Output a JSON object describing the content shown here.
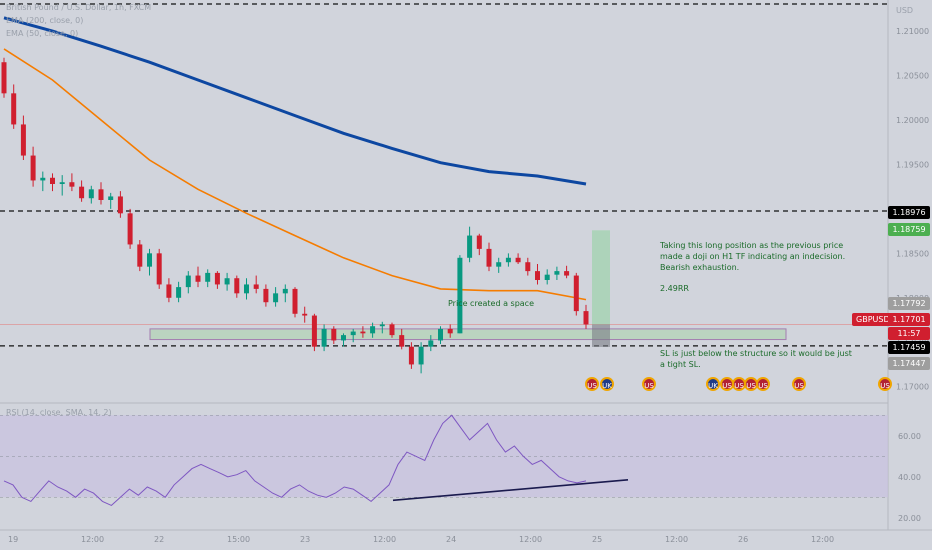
{
  "header": {
    "symbol_line": "British Pound / U.S. Dollar, 1h, FXCM",
    "ema200_line": "EMA (200, close, 0)",
    "ema50_line": "EMA (50, close, 0)",
    "currency": "USD"
  },
  "rsi_legend": "RSI (14, close, SMA, 14, 2)",
  "annotations": {
    "trade_note": "Taking this long position as the previous price\nmade a doji on H1 TF indicating an indecision.\nBearish exhaustion.",
    "rr": "2.49RR",
    "space": "Price created a space",
    "sl_note": "SL is just below the structure so it would be just\na tight SL."
  },
  "price_tags": [
    {
      "label": "1.18976",
      "bg": "#000000",
      "fg": "#ffffff"
    },
    {
      "label": "1.18759",
      "bg": "#4caf50",
      "fg": "#ffffff"
    },
    {
      "label": "1.17792",
      "bg": "#9e9e9e",
      "fg": "#ffffff"
    },
    {
      "label": "1.17701",
      "bg": "#d01f2f",
      "fg": "#ffffff"
    },
    {
      "label": "11:57",
      "bg": "#d01f2f",
      "fg": "#ffffff"
    },
    {
      "label": "1.17459",
      "bg": "#000000",
      "fg": "#ffffff"
    },
    {
      "label": "1.17447",
      "bg": "#9e9e9e",
      "fg": "#ffffff"
    }
  ],
  "symbol_tag": "GBPUSD",
  "colors": {
    "up": "#089981",
    "down": "#d01f2f",
    "ema200": "#0d47a1",
    "ema50": "#f57c00",
    "rsi_line": "#7e57c2",
    "rsi_band": "#c9c2e0",
    "support_zone": "#b8d4bc",
    "trendline": "#1a1a4e"
  },
  "events": [
    {
      "flag": "US",
      "type": "us"
    },
    {
      "flag": "UK",
      "type": "uk"
    },
    {
      "flag": "US",
      "type": "us"
    },
    {
      "flag": "UK",
      "type": "uk"
    },
    {
      "flag": "US",
      "type": "us"
    },
    {
      "flag": "US",
      "type": "us"
    },
    {
      "flag": "US",
      "type": "us"
    },
    {
      "flag": "US",
      "type": "us"
    },
    {
      "flag": "US",
      "type": "us"
    },
    {
      "flag": "US",
      "type": "us"
    }
  ],
  "chart_data": [
    {
      "type": "candlestick",
      "title": "British Pound / U.S. Dollar, 1h, FXCM",
      "ylabel": "USD",
      "ylim": [
        1.1685,
        1.2135
      ],
      "y_ticks": [
        "1.21000",
        "1.20500",
        "1.20000",
        "1.19500",
        "1.19000",
        "1.18500",
        "1.18000",
        "1.17500",
        "1.17000"
      ],
      "x_ticks": [
        "19",
        "12:00",
        "22",
        "15:00",
        "23",
        "12:00",
        "24",
        "12:00",
        "25",
        "12:00",
        "26",
        "12:00"
      ],
      "horizontal_levels": [
        1.18976,
        1.17459
      ],
      "support_zone": [
        1.1753,
        1.1765
      ],
      "long_position": {
        "entry": 1.177,
        "target": 1.18759,
        "stop": 1.17447,
        "label": "2.49RR"
      },
      "ema200": [
        1.2115,
        1.21,
        1.2083,
        1.2065,
        1.2045,
        1.2025,
        1.2005,
        1.1985,
        1.1968,
        1.1952,
        1.1942,
        1.1937,
        1.1928
      ],
      "ema50": [
        1.208,
        1.2045,
        1.2,
        1.1955,
        1.1922,
        1.1895,
        1.187,
        1.1845,
        1.1825,
        1.181,
        1.1808,
        1.1808,
        1.1798
      ],
      "candles": [
        [
          1.2065,
          1.207,
          1.2025,
          1.203
        ],
        [
          1.203,
          1.204,
          1.199,
          1.1995
        ],
        [
          1.1995,
          1.2005,
          1.1955,
          1.196
        ],
        [
          1.196,
          1.197,
          1.1925,
          1.1932
        ],
        [
          1.1932,
          1.1942,
          1.192,
          1.1935
        ],
        [
          1.1935,
          1.194,
          1.192,
          1.1928
        ],
        [
          1.1928,
          1.1938,
          1.1915,
          1.193
        ],
        [
          1.193,
          1.194,
          1.192,
          1.1925
        ],
        [
          1.1925,
          1.1932,
          1.1908,
          1.1912
        ],
        [
          1.1912,
          1.1926,
          1.1906,
          1.1922
        ],
        [
          1.1922,
          1.193,
          1.1905,
          1.191
        ],
        [
          1.191,
          1.1918,
          1.19,
          1.1914
        ],
        [
          1.1914,
          1.192,
          1.189,
          1.1895
        ],
        [
          1.1895,
          1.19,
          1.1855,
          1.186
        ],
        [
          1.186,
          1.1865,
          1.183,
          1.1835
        ],
        [
          1.1835,
          1.1855,
          1.1825,
          1.185
        ],
        [
          1.185,
          1.1855,
          1.181,
          1.1815
        ],
        [
          1.1815,
          1.1822,
          1.1795,
          1.18
        ],
        [
          1.18,
          1.1818,
          1.1795,
          1.1812
        ],
        [
          1.1812,
          1.183,
          1.1805,
          1.1825
        ],
        [
          1.1825,
          1.1835,
          1.1812,
          1.1818
        ],
        [
          1.1818,
          1.1832,
          1.1812,
          1.1828
        ],
        [
          1.1828,
          1.183,
          1.181,
          1.1815
        ],
        [
          1.1815,
          1.1828,
          1.1808,
          1.1822
        ],
        [
          1.1822,
          1.1825,
          1.18,
          1.1805
        ],
        [
          1.1805,
          1.1822,
          1.1798,
          1.1815
        ],
        [
          1.1815,
          1.1825,
          1.1805,
          1.181
        ],
        [
          1.181,
          1.1815,
          1.179,
          1.1795
        ],
        [
          1.1795,
          1.1812,
          1.179,
          1.1805
        ],
        [
          1.1805,
          1.1815,
          1.1795,
          1.181
        ],
        [
          1.181,
          1.1812,
          1.1778,
          1.1782
        ],
        [
          1.1782,
          1.179,
          1.1772,
          1.178
        ],
        [
          1.178,
          1.1782,
          1.174,
          1.1745
        ],
        [
          1.1745,
          1.177,
          1.174,
          1.1765
        ],
        [
          1.1765,
          1.1768,
          1.1748,
          1.1752
        ],
        [
          1.1752,
          1.176,
          1.1745,
          1.1758
        ],
        [
          1.1758,
          1.1765,
          1.175,
          1.1762
        ],
        [
          1.1762,
          1.1768,
          1.1755,
          1.176
        ],
        [
          1.176,
          1.1772,
          1.1755,
          1.1768
        ],
        [
          1.1768,
          1.1773,
          1.176,
          1.177
        ],
        [
          1.177,
          1.1772,
          1.1755,
          1.1758
        ],
        [
          1.1758,
          1.1765,
          1.1742,
          1.1745
        ],
        [
          1.1745,
          1.175,
          1.172,
          1.1725
        ],
        [
          1.1725,
          1.175,
          1.1715,
          1.1745
        ],
        [
          1.1745,
          1.1758,
          1.174,
          1.1752
        ],
        [
          1.1752,
          1.1768,
          1.1748,
          1.1765
        ],
        [
          1.1765,
          1.177,
          1.1755,
          1.176
        ],
        [
          1.176,
          1.1848,
          1.176,
          1.1845
        ],
        [
          1.1845,
          1.188,
          1.184,
          1.187
        ],
        [
          1.187,
          1.1872,
          1.1848,
          1.1855
        ],
        [
          1.1855,
          1.1862,
          1.183,
          1.1835
        ],
        [
          1.1835,
          1.1845,
          1.1828,
          1.184
        ],
        [
          1.184,
          1.185,
          1.1835,
          1.1845
        ],
        [
          1.1845,
          1.185,
          1.1838,
          1.184
        ],
        [
          1.184,
          1.1845,
          1.1825,
          1.183
        ],
        [
          1.183,
          1.1838,
          1.1815,
          1.182
        ],
        [
          1.182,
          1.1832,
          1.1815,
          1.1826
        ],
        [
          1.1826,
          1.1835,
          1.182,
          1.183
        ],
        [
          1.183,
          1.1836,
          1.1822,
          1.1825
        ],
        [
          1.1825,
          1.1828,
          1.178,
          1.1785
        ],
        [
          1.1785,
          1.1792,
          1.1765,
          1.177
        ]
      ]
    },
    {
      "type": "line",
      "title": "RSI (14, close, SMA, 14, 2)",
      "ylim": [
        15,
        75
      ],
      "y_ticks": [
        "60.00",
        "40.00",
        "20.00"
      ],
      "band": [
        30,
        70
      ],
      "midline": 50,
      "values": [
        38,
        36,
        30,
        28,
        33,
        38,
        35,
        33,
        30,
        34,
        32,
        28,
        26,
        30,
        34,
        31,
        35,
        33,
        30,
        36,
        40,
        44,
        46,
        44,
        42,
        40,
        41,
        43,
        38,
        35,
        32,
        30,
        34,
        36,
        33,
        31,
        30,
        32,
        35,
        34,
        31,
        28,
        32,
        36,
        46,
        52,
        50,
        48,
        58,
        66,
        70,
        64,
        58,
        62,
        66,
        58,
        52,
        55,
        50,
        46,
        48,
        44,
        40,
        38,
        37,
        38
      ]
    }
  ]
}
